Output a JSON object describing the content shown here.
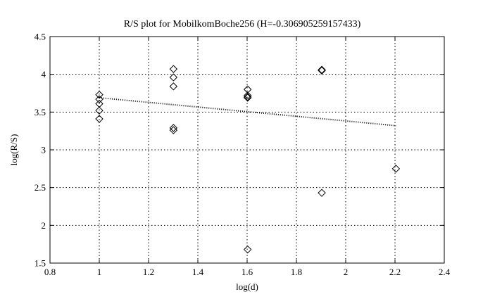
{
  "chart_data": {
    "type": "scatter",
    "title": "R/S plot for MobilkomBoche256 (H=-0.306905259157433)",
    "xlabel": "log(d)",
    "ylabel": "log(R/S)",
    "xlim": [
      0.8,
      2.4
    ],
    "ylim": [
      1.5,
      4.5
    ],
    "xticks": [
      0.8,
      1.0,
      1.2,
      1.4,
      1.6,
      1.8,
      2.0,
      2.2,
      2.4
    ],
    "xtick_labels": [
      "0.8",
      "1",
      "1.2",
      "1.4",
      "1.6",
      "1.8",
      "2",
      "2.2",
      "2.4"
    ],
    "yticks": [
      1.5,
      2.0,
      2.5,
      3.0,
      3.5,
      4.0,
      4.5
    ],
    "ytick_labels": [
      "1.5",
      "2",
      "2.5",
      "3",
      "3.5",
      "4",
      "4.5"
    ],
    "grid": true,
    "marker": "diamond",
    "points": [
      {
        "x": 1.0,
        "y": 3.73
      },
      {
        "x": 1.0,
        "y": 3.67
      },
      {
        "x": 1.0,
        "y": 3.61
      },
      {
        "x": 1.0,
        "y": 3.52
      },
      {
        "x": 1.0,
        "y": 3.41
      },
      {
        "x": 1.301,
        "y": 4.07
      },
      {
        "x": 1.301,
        "y": 3.96
      },
      {
        "x": 1.301,
        "y": 3.84
      },
      {
        "x": 1.301,
        "y": 3.29
      },
      {
        "x": 1.301,
        "y": 3.26
      },
      {
        "x": 1.602,
        "y": 3.8
      },
      {
        "x": 1.602,
        "y": 3.72
      },
      {
        "x": 1.602,
        "y": 3.7
      },
      {
        "x": 1.602,
        "y": 3.69
      },
      {
        "x": 1.602,
        "y": 1.68
      },
      {
        "x": 1.903,
        "y": 4.06
      },
      {
        "x": 1.903,
        "y": 4.05
      },
      {
        "x": 1.903,
        "y": 2.43
      },
      {
        "x": 2.204,
        "y": 2.75
      }
    ],
    "fit_line": {
      "x": [
        1.0,
        2.204
      ],
      "y": [
        3.69,
        3.32
      ],
      "style": "dotted"
    }
  }
}
